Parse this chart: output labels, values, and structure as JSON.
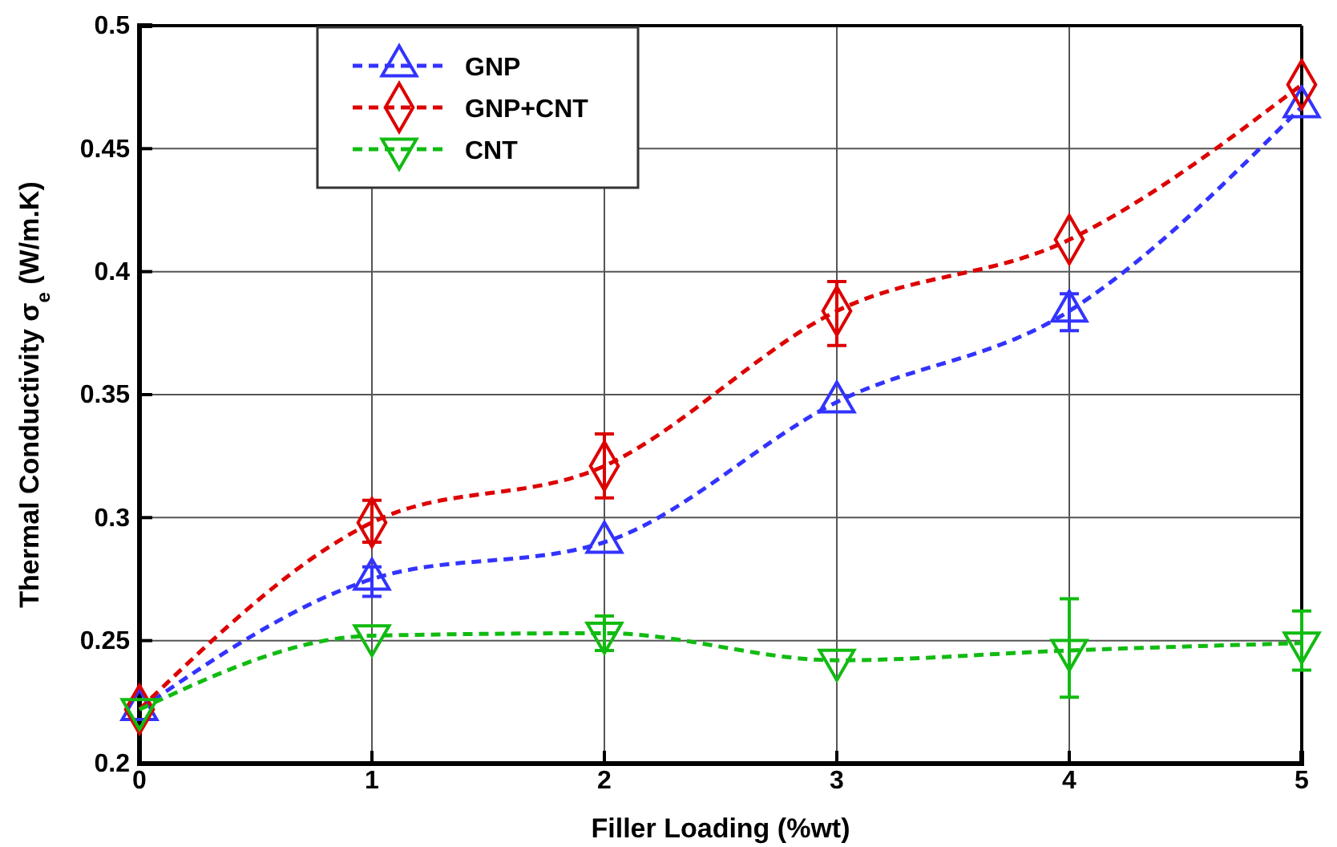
{
  "chart_data": {
    "type": "line",
    "xlabel": "Filler Loading (%wt)",
    "ylabel": "Thermal Conductivity σ$_{e}$ (W/m.K)",
    "x": [
      0,
      1,
      2,
      3,
      4,
      5
    ],
    "xlim": [
      0,
      5
    ],
    "xticks": [
      0,
      1,
      2,
      3,
      4,
      5
    ],
    "ylim": [
      0.2,
      0.5
    ],
    "yticks": [
      0.2,
      0.25,
      0.3,
      0.35,
      0.4,
      0.45,
      0.5
    ],
    "grid": true,
    "legend": "top left",
    "line_style": "dashed",
    "series": [
      {
        "name": "GNP",
        "color": "#3333ff",
        "marker": "triangle",
        "values": [
          0.222,
          0.275,
          0.29,
          0.347,
          0.384,
          0.467
        ],
        "errors": [
          null,
          [
            0.268,
            0.28
          ],
          null,
          null,
          [
            0.376,
            0.391
          ],
          null
        ]
      },
      {
        "name": "GNP+CNT",
        "color": "#dd0000",
        "marker": "diamond",
        "values": [
          0.222,
          0.298,
          0.321,
          0.384,
          0.413,
          0.476
        ],
        "errors": [
          null,
          [
            0.29,
            0.307
          ],
          [
            0.308,
            0.334
          ],
          [
            0.37,
            0.396
          ],
          null,
          null
        ]
      },
      {
        "name": "CNT",
        "color": "#11bb11",
        "marker": "triangle-down",
        "values": [
          0.222,
          0.252,
          0.253,
          0.242,
          0.246,
          0.249
        ],
        "errors": [
          null,
          null,
          [
            0.246,
            0.26
          ],
          null,
          [
            0.227,
            0.267
          ],
          [
            0.238,
            0.262
          ]
        ]
      }
    ]
  }
}
